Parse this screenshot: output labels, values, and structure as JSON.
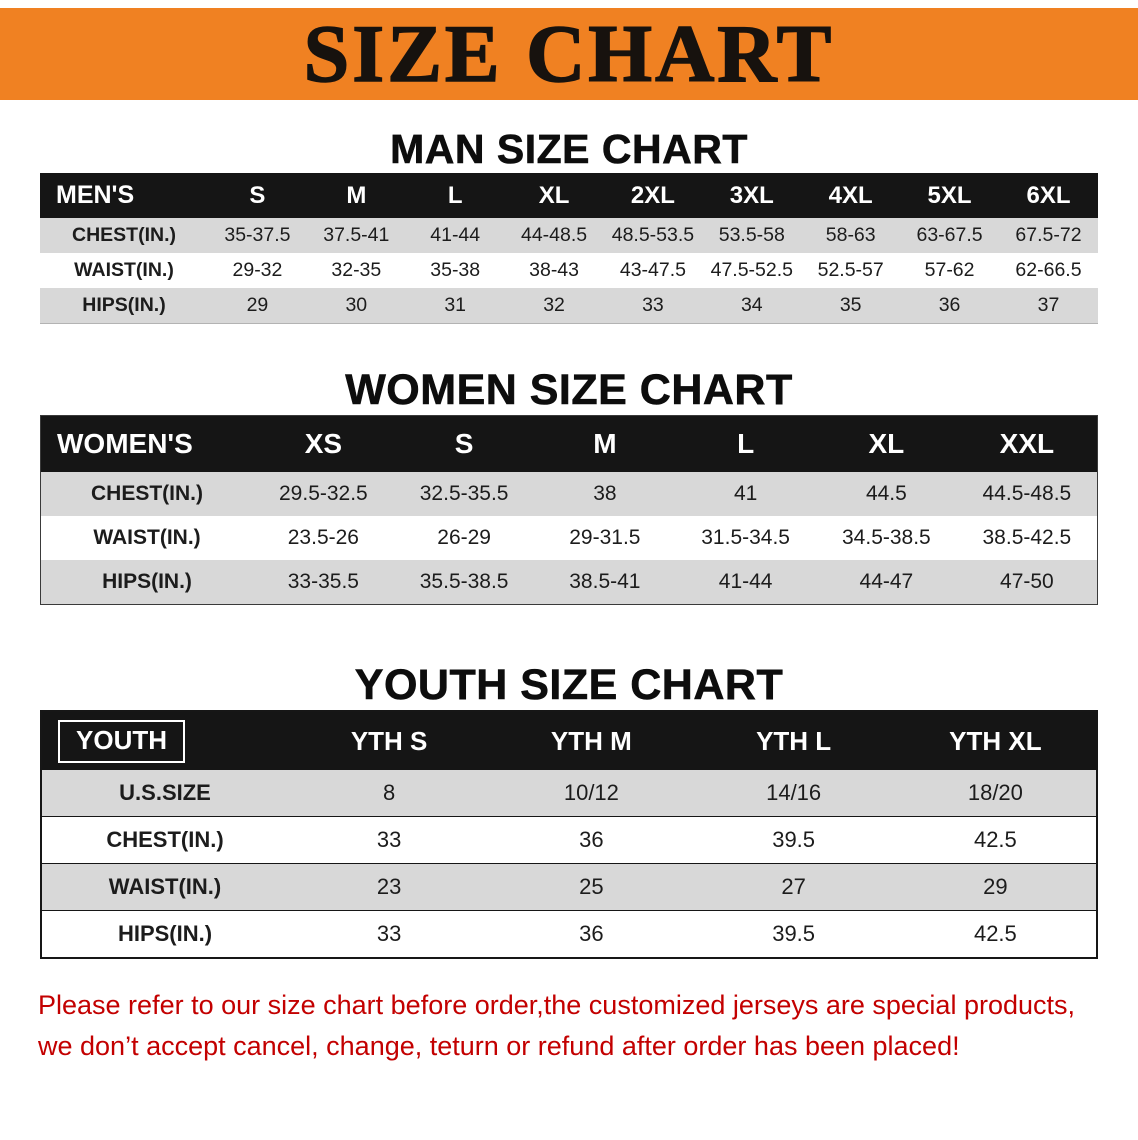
{
  "banner": {
    "title": "SIZE CHART",
    "background": "#f08122",
    "text_color": "#17120e"
  },
  "men": {
    "heading": "MAN SIZE CHART",
    "header": [
      "MEN'S",
      "S",
      "M",
      "L",
      "XL",
      "2XL",
      "3XL",
      "4XL",
      "5XL",
      "6XL"
    ],
    "rows": [
      [
        "CHEST(IN.)",
        "35-37.5",
        "37.5-41",
        "41-44",
        "44-48.5",
        "48.5-53.5",
        "53.5-58",
        "58-63",
        "63-67.5",
        "67.5-72"
      ],
      [
        "WAIST(IN.)",
        "29-32",
        "32-35",
        "35-38",
        "38-43",
        "43-47.5",
        "47.5-52.5",
        "52.5-57",
        "57-62",
        "62-66.5"
      ],
      [
        "HIPS(IN.)",
        "29",
        "30",
        "31",
        "32",
        "33",
        "34",
        "35",
        "36",
        "37"
      ]
    ]
  },
  "women": {
    "heading": "WOMEN SIZE CHART",
    "header": [
      "WOMEN'S",
      "XS",
      "S",
      "M",
      "L",
      "XL",
      "XXL"
    ],
    "rows": [
      [
        "CHEST(IN.)",
        "29.5-32.5",
        "32.5-35.5",
        "38",
        "41",
        "44.5",
        "44.5-48.5"
      ],
      [
        "WAIST(IN.)",
        "23.5-26",
        "26-29",
        "29-31.5",
        "31.5-34.5",
        "34.5-38.5",
        "38.5-42.5"
      ],
      [
        "HIPS(IN.)",
        "33-35.5",
        "35.5-38.5",
        "38.5-41",
        "41-44",
        "44-47",
        "47-50"
      ]
    ]
  },
  "youth": {
    "heading": "YOUTH SIZE CHART",
    "header": [
      "YOUTH",
      "YTH S",
      "YTH M",
      "YTH L",
      "YTH XL"
    ],
    "rows": [
      [
        "U.S.SIZE",
        "8",
        "10/12",
        "14/16",
        "18/20"
      ],
      [
        "CHEST(IN.)",
        "33",
        "36",
        "39.5",
        "42.5"
      ],
      [
        "WAIST(IN.)",
        "23",
        "25",
        "27",
        "29"
      ],
      [
        "HIPS(IN.)",
        "33",
        "36",
        "39.5",
        "42.5"
      ]
    ]
  },
  "disclaimer": {
    "line1": "Please refer to our size chart before order,the customized jerseys are special products,",
    "line2": "we don’t accept cancel, change, teturn or refund after order has been placed!",
    "color": "#c30000"
  }
}
